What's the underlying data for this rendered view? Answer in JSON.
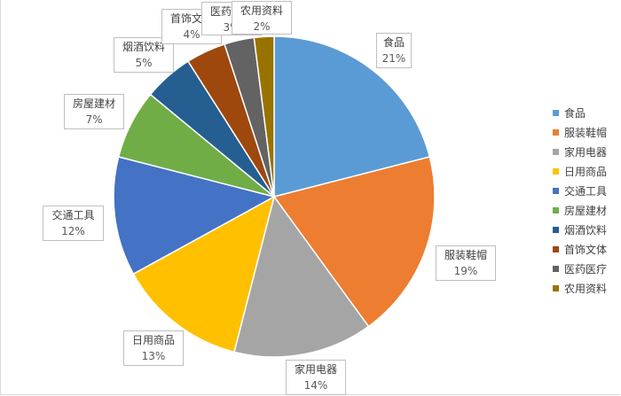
{
  "chart_data": {
    "type": "pie",
    "categories": [
      "食品",
      "服装鞋帽",
      "家用电器",
      "日用商品",
      "交通工具",
      "房屋建材",
      "烟酒饮料",
      "首饰文体",
      "医药医疗",
      "农用资料"
    ],
    "values": [
      21,
      19,
      14,
      13,
      12,
      7,
      5,
      4,
      3,
      2
    ],
    "labels": [
      "21%",
      "19%",
      "14%",
      "13%",
      "12%",
      "7%",
      "5%",
      "4%",
      "3%",
      "2%"
    ],
    "colors": [
      "#5B9BD5",
      "#ED7D31",
      "#A5A5A5",
      "#FFC000",
      "#4472C4",
      "#70AD47",
      "#255E91",
      "#9E480E",
      "#636363",
      "#997300"
    ],
    "start_angle": "top, clockwise",
    "legend": "right"
  }
}
